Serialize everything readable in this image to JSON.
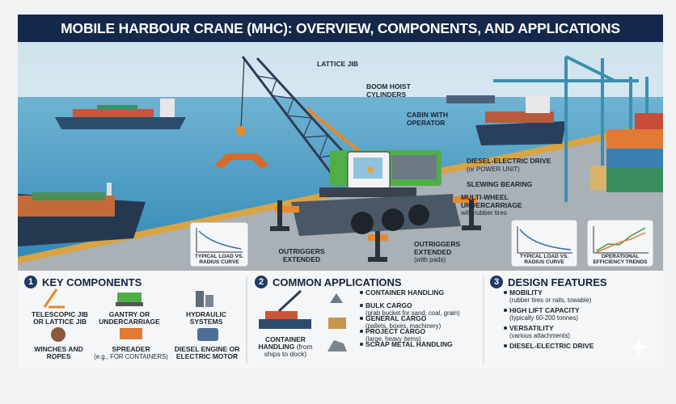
{
  "header": {
    "title": "MOBILE HARBOUR CRANE (MHC): OVERVIEW, COMPONENTS, AND APPLICATIONS"
  },
  "callouts": [
    {
      "label": "LATTICE JIB"
    },
    {
      "label": "BOOM HOIST CYLINDERS"
    },
    {
      "label": "CABIN WITH OPERATOR"
    },
    {
      "label": "DIESEL-ELECTRIC DRIVE",
      "note": "(or POWER UNIT)"
    },
    {
      "label": "SLEWING BEARING"
    },
    {
      "label": "MULTI-WHEEL UNDERCARRIAGE",
      "note": "with rubber tires"
    },
    {
      "label": "OUTRIGGERS EXTENDED"
    },
    {
      "label": "OUTRIGGERS EXTENDED",
      "note": "(with pads)"
    }
  ],
  "insets": [
    {
      "label": "TYPICAL LOAD VS. RADIUS CURVE"
    },
    {
      "label": "TYPICAL LOAD VS. RADIUS CURVE"
    },
    {
      "label": "OPERATIONAL EFFICIENCY TRENDS"
    }
  ],
  "sections": [
    {
      "number": "1",
      "title": "KEY COMPONENTS",
      "items": [
        {
          "label": "TELESCOPIC JIB OR LATTICE JIB"
        },
        {
          "label": "GANTRY OR UNDERCARRIAGE"
        },
        {
          "label": "HYDRAULIC SYSTEMS"
        },
        {
          "label": "WINCHES AND ROPES"
        },
        {
          "label": "SPREADER",
          "note": "(e.g., FOR CONTAINERS)"
        },
        {
          "label": "DIESEL ENGINE OR ELECTRIC MOTOR"
        }
      ]
    },
    {
      "number": "2",
      "title": "COMMON APPLICATIONS",
      "feature": {
        "label": "CONTAINER HANDLING",
        "note": "(from ships to dock)"
      },
      "items": [
        {
          "label": "CONTAINER HANDLING"
        },
        {
          "label": "BULK CARGO",
          "note": "(grab bucket for sand, coal, grain)"
        },
        {
          "label": "GENERAL CARGO",
          "note": "(pallets, boxes, machinery)"
        },
        {
          "label": "PROJECT CARGO",
          "note": "(large, heavy items)"
        },
        {
          "label": "SCRAP METAL HANDLING"
        }
      ]
    },
    {
      "number": "3",
      "title": "DESIGN FEATURES",
      "items": [
        {
          "label": "MOBILITY",
          "note": "(rubber tires or rails, towable)"
        },
        {
          "label": "HIGH LIFT CAPACITY",
          "note": "(typically 60-200 tonnes)"
        },
        {
          "label": "VERSATILITY",
          "note": "(various attachments)"
        },
        {
          "label": "DIESEL-ELECTRIC DRIVE"
        }
      ]
    }
  ]
}
